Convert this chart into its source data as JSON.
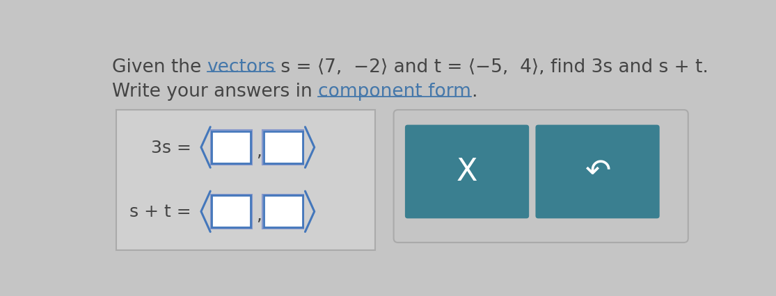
{
  "bg_color": "#c5c5c5",
  "left_box_bg": "#d0d0d0",
  "left_box_border": "#aaaaaa",
  "right_box_bg": "#c5c5c5",
  "right_box_border": "#aaaaaa",
  "teal_color": "#3a7f90",
  "x_symbol": "X",
  "undo_symbol": "↶",
  "label_3s": "3s =",
  "label_st": "s + t =",
  "input_box_color": "#ffffff",
  "bracket_color": "#4477bb",
  "text_color": "#444444",
  "link_color": "#4477aa",
  "fontsize_title": 19,
  "fontsize_label": 17,
  "fontsize_btn": 32
}
